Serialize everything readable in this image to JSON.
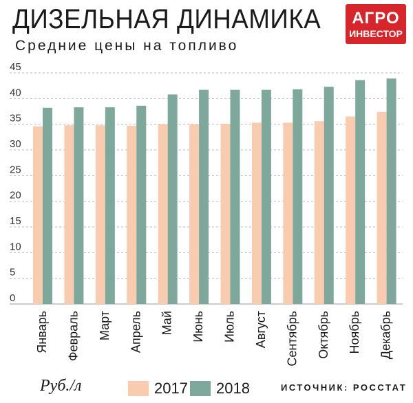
{
  "header": {
    "title": "ДИЗЕЛЬНАЯ ДИНАМИКА",
    "subtitle": "Средние цены на топливо",
    "logo_line1": "АГРО",
    "logo_line2": "ИНВЕСТОР"
  },
  "footer": {
    "unit": "Руб./л",
    "source": "ИСТОЧНИК: РОССТАТ"
  },
  "colors": {
    "series_2017": "#f9ccb0",
    "series_2018": "#7fa89c",
    "logo": "#d7262b"
  },
  "chart_data": {
    "type": "bar",
    "categories": [
      "Январь",
      "Февраль",
      "Март",
      "Апрель",
      "Май",
      "Июнь",
      "Июль",
      "Август",
      "Сентябрь",
      "Октябрь",
      "Ноябрь",
      "Декабрь"
    ],
    "series": [
      {
        "name": "2017",
        "values": [
          34.6,
          34.8,
          34.8,
          34.7,
          35.0,
          35.0,
          35.1,
          35.3,
          35.3,
          35.6,
          36.5,
          37.4
        ]
      },
      {
        "name": "2018",
        "values": [
          38.2,
          38.3,
          38.3,
          38.6,
          40.8,
          41.7,
          41.7,
          41.7,
          41.8,
          42.3,
          43.6,
          43.9
        ]
      }
    ],
    "yticks": [
      0,
      5,
      10,
      15,
      20,
      25,
      30,
      35,
      40,
      45
    ],
    "ylim": [
      0,
      45
    ],
    "grid": true,
    "legend": "bottom"
  }
}
